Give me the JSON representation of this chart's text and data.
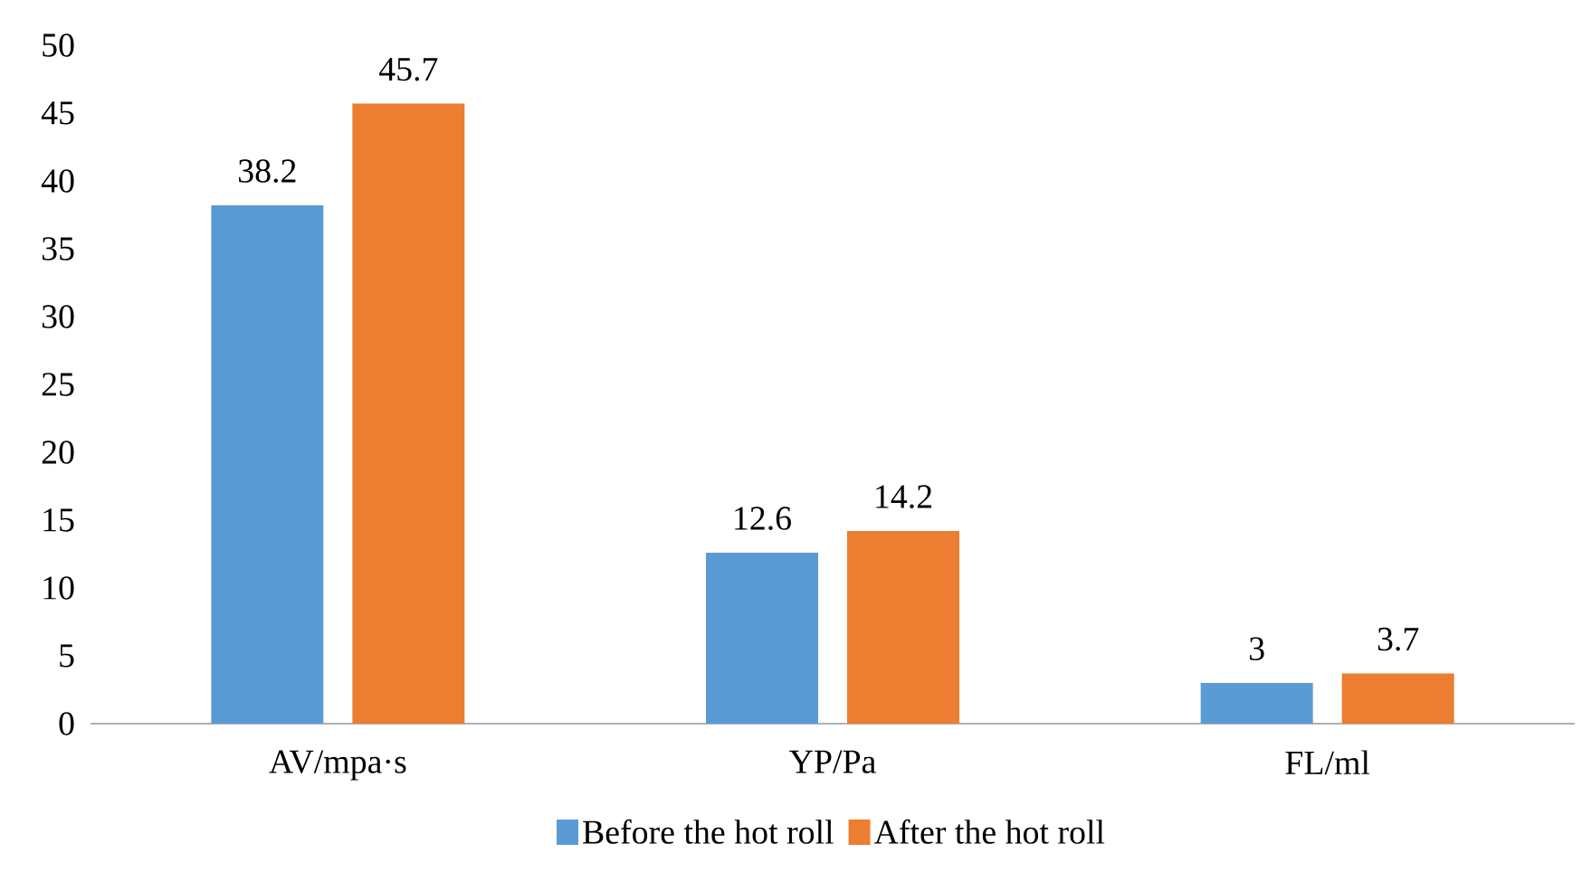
{
  "chart_data": {
    "type": "bar",
    "categories": [
      "AV/mpa·s",
      "YP/Pa",
      "FL/ml"
    ],
    "series": [
      {
        "name": "Before the hot roll",
        "color": "#5b9bd5",
        "values": [
          38.2,
          12.6,
          3
        ]
      },
      {
        "name": "After the hot roll",
        "color": "#ed7d31",
        "values": [
          45.7,
          14.2,
          3.7
        ]
      }
    ],
    "ylim": [
      0,
      50
    ],
    "yticks": [
      0,
      5,
      10,
      15,
      20,
      25,
      30,
      35,
      40,
      45,
      50
    ],
    "data_labels": true,
    "grid": false,
    "legend": "bottom"
  }
}
